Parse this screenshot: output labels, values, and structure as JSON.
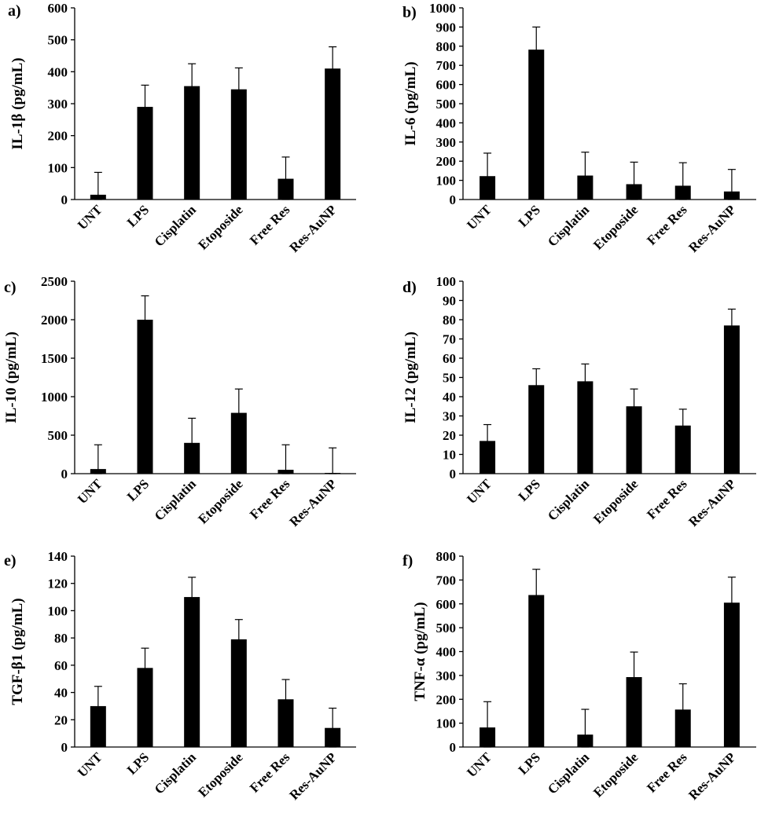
{
  "chart_data": [
    {
      "type": "bar",
      "panel_label": "a)",
      "ylabel": "IL-1β (pg/mL)",
      "categories": [
        "UNT",
        "LPS",
        "Cisplatin",
        "Etoposide",
        "Free Res",
        "Res-AuNP"
      ],
      "values": [
        15,
        290,
        355,
        345,
        65,
        410
      ],
      "errors": [
        70,
        68,
        70,
        67,
        68,
        68
      ],
      "ylim": [
        0,
        600
      ],
      "yticks": [
        0,
        100,
        200,
        300,
        400,
        500,
        600
      ],
      "ytick_labels": [
        "0",
        "100",
        "200",
        "300",
        "400",
        "500",
        "600"
      ],
      "grid": false,
      "legend": "none"
    },
    {
      "type": "bar",
      "panel_label": "b)",
      "ylabel": "IL-6 (pg/mL)",
      "categories": [
        "UNT",
        "LPS",
        "Cisplatin",
        "Etoposide",
        "Free Res",
        "Res-AuNP"
      ],
      "values": [
        122,
        782,
        125,
        80,
        72,
        42
      ],
      "errors": [
        120,
        118,
        122,
        115,
        120,
        115
      ],
      "ylim": [
        0,
        1000
      ],
      "yticks": [
        0,
        100,
        200,
        300,
        400,
        500,
        600,
        700,
        800,
        900,
        1000
      ],
      "ytick_labels": [
        "0",
        "100",
        "200",
        "300",
        "400",
        "500",
        "600",
        "700",
        "800",
        "900",
        "1000"
      ],
      "grid": false,
      "legend": "none"
    },
    {
      "type": "bar",
      "panel_label": "c)",
      "ylabel": "IL-10 (pg/mL)",
      "categories": [
        "UNT",
        "LPS",
        "Cisplatin",
        "Etoposide",
        "Free Res",
        "Res-AuNP"
      ],
      "values": [
        60,
        2000,
        400,
        790,
        50,
        10
      ],
      "errors": [
        315,
        310,
        320,
        310,
        325,
        325
      ],
      "ylim": [
        0,
        2500
      ],
      "yticks": [
        0,
        500,
        1000,
        1500,
        2000,
        2500
      ],
      "ytick_labels": [
        "0",
        "500",
        "1000",
        "1500",
        "2000",
        "2500"
      ],
      "grid": false,
      "legend": "none"
    },
    {
      "type": "bar",
      "panel_label": "d)",
      "ylabel": "IL-12 (pg/mL)",
      "categories": [
        "UNT",
        "LPS",
        "Cisplatin",
        "Etoposide",
        "Free Res",
        "Res-AuNP"
      ],
      "values": [
        17,
        46,
        48,
        35,
        25,
        77
      ],
      "errors": [
        8.5,
        8.5,
        9,
        9,
        8.5,
        8.5
      ],
      "ylim": [
        0,
        100
      ],
      "yticks": [
        0,
        10,
        20,
        30,
        40,
        50,
        60,
        70,
        80,
        90,
        100
      ],
      "ytick_labels": [
        "0",
        "10",
        "20",
        "30",
        "40",
        "50",
        "60",
        "70",
        "80",
        "90",
        "100"
      ],
      "grid": false,
      "legend": "none"
    },
    {
      "type": "bar",
      "panel_label": "e)",
      "ylabel": "TGF-β1 (pg/mL)",
      "categories": [
        "UNT",
        "LPS",
        "Cisplatin",
        "Etoposide",
        "Free Res",
        "Res-AuNP"
      ],
      "values": [
        30,
        58,
        110,
        79,
        35,
        14
      ],
      "errors": [
        14.5,
        14.5,
        14.5,
        14.5,
        14.5,
        14.5
      ],
      "ylim": [
        0,
        140
      ],
      "yticks": [
        0,
        20,
        40,
        60,
        80,
        100,
        120,
        140
      ],
      "ytick_labels": [
        "0",
        "20",
        "40",
        "60",
        "80",
        "100",
        "120",
        "140"
      ],
      "grid": false,
      "legend": "none"
    },
    {
      "type": "bar",
      "panel_label": "f)",
      "ylabel": "TNF-α (pg/mL)",
      "categories": [
        "UNT",
        "LPS",
        "Cisplatin",
        "Etoposide",
        "Free Res",
        "Res-AuNP"
      ],
      "values": [
        82,
        637,
        52,
        293,
        157,
        605
      ],
      "errors": [
        108,
        108,
        106,
        105,
        108,
        107
      ],
      "ylim": [
        0,
        800
      ],
      "yticks": [
        0,
        100,
        200,
        300,
        400,
        500,
        600,
        700,
        800
      ],
      "ytick_labels": [
        "0",
        "100",
        "200",
        "300",
        "400",
        "500",
        "600",
        "700",
        "800"
      ],
      "grid": false,
      "legend": "none"
    }
  ]
}
